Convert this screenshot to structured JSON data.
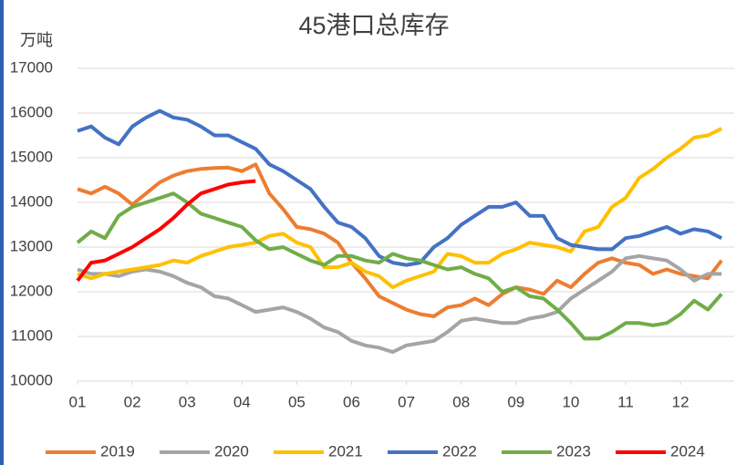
{
  "chart_data": {
    "type": "line",
    "title": "45港口总库存",
    "y_label": "万吨",
    "x": [
      1,
      1.25,
      1.5,
      1.75,
      2,
      2.25,
      2.5,
      2.75,
      3,
      3.25,
      3.5,
      3.75,
      4,
      4.25,
      4.5,
      4.75,
      5,
      5.25,
      5.5,
      5.75,
      6,
      6.25,
      6.5,
      6.75,
      7,
      7.25,
      7.5,
      7.75,
      8,
      8.25,
      8.5,
      8.75,
      9,
      9.25,
      9.5,
      9.75,
      10,
      10.25,
      10.5,
      10.75,
      11,
      11.25,
      11.5,
      11.75,
      12,
      12.25,
      12.5,
      12.75
    ],
    "xlim": [
      1,
      12.98
    ],
    "xticks": [
      {
        "value": 1,
        "label": "01"
      },
      {
        "value": 2,
        "label": "02"
      },
      {
        "value": 3,
        "label": "03"
      },
      {
        "value": 4,
        "label": "04"
      },
      {
        "value": 5,
        "label": "05"
      },
      {
        "value": 6,
        "label": "06"
      },
      {
        "value": 7,
        "label": "07"
      },
      {
        "value": 8,
        "label": "08"
      },
      {
        "value": 9,
        "label": "09"
      },
      {
        "value": 10,
        "label": "10"
      },
      {
        "value": 11,
        "label": "11"
      },
      {
        "value": 12,
        "label": "12"
      }
    ],
    "ylim": [
      10000,
      17000
    ],
    "yticks": [
      10000,
      11000,
      12000,
      13000,
      14000,
      15000,
      16000,
      17000
    ],
    "grid": true,
    "series": [
      {
        "name": "2019",
        "color": "#ed7d31",
        "values": [
          14300,
          14200,
          14350,
          14200,
          13950,
          14200,
          14450,
          14600,
          14700,
          14750,
          14770,
          14780,
          14700,
          14850,
          14200,
          13850,
          13450,
          13400,
          13300,
          13100,
          12650,
          12300,
          11900,
          11750,
          11600,
          11500,
          11450,
          11650,
          11700,
          11850,
          11700,
          11950,
          12100,
          12050,
          11950,
          12250,
          12100,
          12400,
          12650,
          12750,
          12650,
          12600,
          12400,
          12500,
          12400,
          12350,
          12300,
          12700
        ]
      },
      {
        "name": "2020",
        "color": "#a5a5a5",
        "values": [
          12500,
          12400,
          12400,
          12350,
          12450,
          12500,
          12450,
          12350,
          12200,
          12100,
          11900,
          11850,
          11700,
          11550,
          11600,
          11650,
          11550,
          11400,
          11200,
          11100,
          10900,
          10800,
          10750,
          10650,
          10800,
          10850,
          10900,
          11100,
          11350,
          11400,
          11350,
          11300,
          11300,
          11400,
          11450,
          11550,
          11850,
          12050,
          12250,
          12450,
          12750,
          12800,
          12750,
          12700,
          12500,
          12250,
          12400,
          12400
        ]
      },
      {
        "name": "2021",
        "color": "#ffc000",
        "values": [
          12400,
          12300,
          12400,
          12450,
          12500,
          12550,
          12600,
          12700,
          12650,
          12800,
          12900,
          13000,
          13050,
          13100,
          13250,
          13300,
          13100,
          13000,
          12550,
          12550,
          12650,
          12450,
          12350,
          12100,
          12250,
          12350,
          12450,
          12850,
          12800,
          12650,
          12650,
          12850,
          12950,
          13100,
          13050,
          13000,
          12900,
          13350,
          13450,
          13900,
          14100,
          14550,
          14750,
          15000,
          15200,
          15450,
          15500,
          15650
        ]
      },
      {
        "name": "2022",
        "color": "#4472c4",
        "values": [
          15600,
          15700,
          15450,
          15300,
          15700,
          15900,
          16050,
          15900,
          15850,
          15700,
          15500,
          15500,
          15350,
          15200,
          14850,
          14700,
          14500,
          14300,
          13900,
          13550,
          13450,
          13200,
          12800,
          12650,
          12600,
          12650,
          13000,
          13200,
          13500,
          13700,
          13900,
          13900,
          14000,
          13700,
          13700,
          13200,
          13050,
          13000,
          12950,
          12950,
          13200,
          13250,
          13350,
          13450,
          13300,
          13400,
          13350,
          13200
        ]
      },
      {
        "name": "2023",
        "color": "#70ad47",
        "values": [
          13100,
          13350,
          13200,
          13700,
          13900,
          14000,
          14100,
          14200,
          14000,
          13750,
          13650,
          13550,
          13450,
          13150,
          12950,
          13000,
          12850,
          12700,
          12600,
          12800,
          12800,
          12700,
          12650,
          12850,
          12750,
          12700,
          12600,
          12500,
          12550,
          12400,
          12300,
          12000,
          12100,
          11900,
          11850,
          11600,
          11300,
          10950,
          10950,
          11100,
          11300,
          11300,
          11250,
          11300,
          11500,
          11800,
          11600,
          11950
        ]
      },
      {
        "name": "2024",
        "color": "#ff0000",
        "values": [
          12250,
          12650,
          12700,
          12850,
          13000,
          13200,
          13400,
          13650,
          13950,
          14200,
          14300,
          14400,
          14450,
          14480,
          null,
          null,
          null,
          null,
          null,
          null,
          null,
          null,
          null,
          null,
          null,
          null,
          null,
          null,
          null,
          null,
          null,
          null,
          null,
          null,
          null,
          null,
          null,
          null,
          null,
          null,
          null,
          null,
          null,
          null,
          null,
          null,
          null,
          null
        ]
      }
    ]
  }
}
